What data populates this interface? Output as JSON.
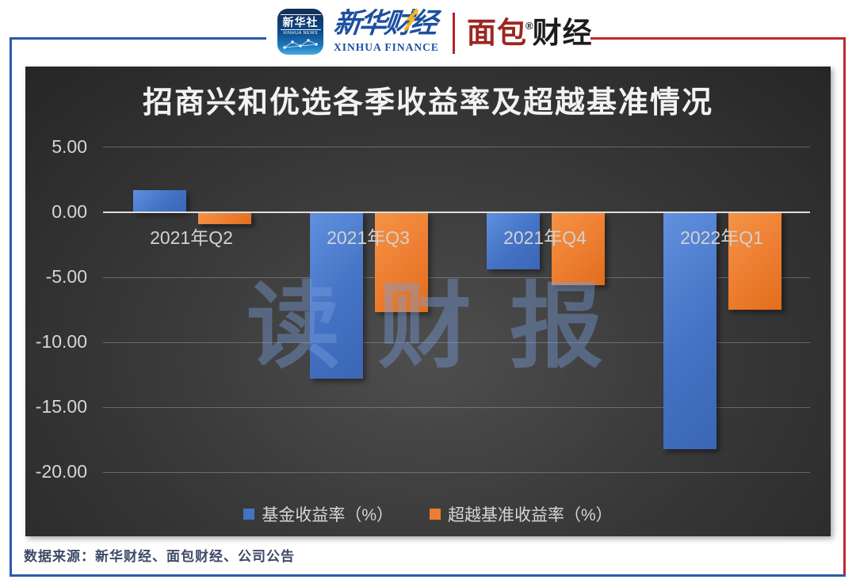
{
  "header": {
    "xinhua_news": {
      "cn": "新华社",
      "en": "XINHUA NEWS"
    },
    "xinhua_finance": {
      "cn": "新华财经",
      "en": "XINHUA FINANCE"
    },
    "bread_finance": {
      "cn_left": "面包",
      "cn_right": "财经",
      "reg_mark": "®"
    }
  },
  "chart_data": {
    "type": "bar",
    "title": "招商兴和优选各季收益率及超越基准情况",
    "categories": [
      "2021年Q2",
      "2021年Q3",
      "2021年Q4",
      "2022年Q1"
    ],
    "series": [
      {
        "key": "fund-return",
        "name": "基金收益率（%）",
        "color": "#4472c4",
        "values": [
          1.7,
          -12.8,
          -4.4,
          -18.2
        ]
      },
      {
        "key": "excess-benchmark-return",
        "name": "超越基准收益率（%）",
        "color": "#ed7d31",
        "values": [
          -0.9,
          -7.7,
          -5.6,
          -7.5
        ]
      }
    ],
    "y_ticks": [
      5,
      0,
      -5,
      -10,
      -15,
      -20
    ],
    "ylim": [
      -20,
      5
    ],
    "grid": true,
    "legend_position": "bottom"
  },
  "watermark": {
    "text": "读财报"
  },
  "footer": {
    "source": "数据来源：新华财经、面包财经、公司公告"
  }
}
